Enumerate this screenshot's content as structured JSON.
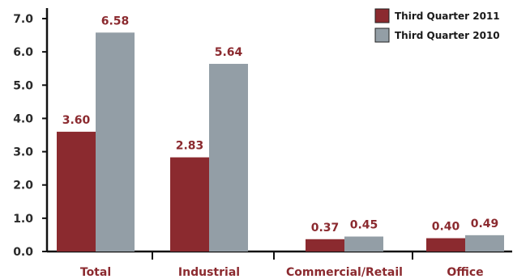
{
  "chart_data": {
    "type": "bar",
    "categories": [
      "Total",
      "Industrial",
      "Commercial/Retail",
      "Office"
    ],
    "series": [
      {
        "name": "Third Quarter 2011",
        "values": [
          3.6,
          2.83,
          0.37,
          0.4
        ],
        "color": "#8b2a2f"
      },
      {
        "name": "Third Quarter 2010",
        "values": [
          6.58,
          5.64,
          0.45,
          0.49
        ],
        "color": "#939ea6"
      }
    ],
    "value_labels": [
      [
        "3.60",
        "2.83",
        "0.37",
        "0.40"
      ],
      [
        "6.58",
        "5.64",
        "0.45",
        "0.49"
      ]
    ],
    "yticks": [
      "0.0",
      "1.0",
      "2.0",
      "3.0",
      "4.0",
      "5.0",
      "6.0",
      "7.0"
    ],
    "ylim": [
      0,
      7
    ],
    "grid": false,
    "legend_position": "top-right",
    "title": "",
    "xlabel": "",
    "ylabel": ""
  }
}
